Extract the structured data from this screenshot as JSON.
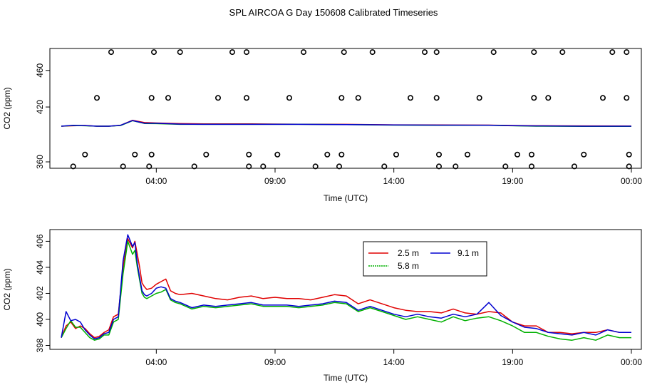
{
  "title": "SPL AIRCOA G  Day 150608  Calibrated Timeseries",
  "chart_data": [
    {
      "type": "scatter+line",
      "ylabel": "CO2 (ppm)",
      "xlabel": "Time (UTC)",
      "xlim": [
        0,
        24
      ],
      "ylim": [
        353,
        484
      ],
      "x_ticks": [
        {
          "value": 4,
          "label": "04:00"
        },
        {
          "value": 9,
          "label": "09:00"
        },
        {
          "value": 14,
          "label": "14:00"
        },
        {
          "value": 19,
          "label": "19:00"
        },
        {
          "value": 24,
          "label": "00:00"
        }
      ],
      "y_ticks": [
        {
          "value": 360,
          "label": "360"
        },
        {
          "value": 420,
          "label": "420"
        },
        {
          "value": 460,
          "label": "460"
        }
      ],
      "calibration_points": [
        {
          "x": 2.1,
          "y": 480
        },
        {
          "x": 3.9,
          "y": 480
        },
        {
          "x": 5.0,
          "y": 480
        },
        {
          "x": 7.2,
          "y": 480
        },
        {
          "x": 7.8,
          "y": 480
        },
        {
          "x": 10.2,
          "y": 480
        },
        {
          "x": 11.9,
          "y": 480
        },
        {
          "x": 13.1,
          "y": 480
        },
        {
          "x": 15.3,
          "y": 480
        },
        {
          "x": 15.8,
          "y": 480
        },
        {
          "x": 18.2,
          "y": 480
        },
        {
          "x": 19.9,
          "y": 480
        },
        {
          "x": 21.1,
          "y": 480
        },
        {
          "x": 23.2,
          "y": 480
        },
        {
          "x": 23.8,
          "y": 480
        },
        {
          "x": 1.5,
          "y": 430
        },
        {
          "x": 3.8,
          "y": 430
        },
        {
          "x": 4.5,
          "y": 430
        },
        {
          "x": 6.6,
          "y": 430
        },
        {
          "x": 7.8,
          "y": 430
        },
        {
          "x": 9.6,
          "y": 430
        },
        {
          "x": 11.8,
          "y": 430
        },
        {
          "x": 12.5,
          "y": 430
        },
        {
          "x": 14.7,
          "y": 430
        },
        {
          "x": 15.8,
          "y": 430
        },
        {
          "x": 17.6,
          "y": 430
        },
        {
          "x": 19.9,
          "y": 430
        },
        {
          "x": 20.5,
          "y": 430
        },
        {
          "x": 22.8,
          "y": 430
        },
        {
          "x": 23.8,
          "y": 430
        },
        {
          "x": 1.0,
          "y": 368
        },
        {
          "x": 3.1,
          "y": 368
        },
        {
          "x": 3.8,
          "y": 368
        },
        {
          "x": 6.1,
          "y": 368
        },
        {
          "x": 7.9,
          "y": 368
        },
        {
          "x": 9.1,
          "y": 368
        },
        {
          "x": 11.2,
          "y": 368
        },
        {
          "x": 11.8,
          "y": 368
        },
        {
          "x": 14.1,
          "y": 368
        },
        {
          "x": 15.9,
          "y": 368
        },
        {
          "x": 17.1,
          "y": 368
        },
        {
          "x": 19.2,
          "y": 368
        },
        {
          "x": 19.8,
          "y": 368
        },
        {
          "x": 22.0,
          "y": 368
        },
        {
          "x": 23.9,
          "y": 368
        },
        {
          "x": 0.5,
          "y": 355
        },
        {
          "x": 2.6,
          "y": 355
        },
        {
          "x": 3.7,
          "y": 355
        },
        {
          "x": 5.6,
          "y": 355
        },
        {
          "x": 7.9,
          "y": 355
        },
        {
          "x": 8.5,
          "y": 355
        },
        {
          "x": 10.7,
          "y": 355
        },
        {
          "x": 11.7,
          "y": 355
        },
        {
          "x": 13.6,
          "y": 355
        },
        {
          "x": 15.9,
          "y": 355
        },
        {
          "x": 16.6,
          "y": 355
        },
        {
          "x": 18.7,
          "y": 355
        },
        {
          "x": 19.8,
          "y": 355
        },
        {
          "x": 21.6,
          "y": 355
        },
        {
          "x": 23.9,
          "y": 355
        }
      ],
      "series": [
        {
          "name": "2.5 m",
          "color": "#e00000",
          "x": [
            0,
            0.5,
            1,
            1.5,
            2,
            2.5,
            3.0,
            3.5,
            4,
            5,
            6,
            8,
            10,
            12,
            14,
            16,
            18,
            19,
            20,
            22,
            24
          ],
          "y": [
            399.0,
            399.5,
            399.8,
            399.0,
            399.0,
            400.0,
            405.5,
            403.0,
            402.5,
            401.8,
            401.5,
            401.5,
            401.2,
            401.0,
            400.5,
            400.3,
            400.2,
            399.8,
            399.5,
            399.3,
            399.2
          ]
        },
        {
          "name": "5.8 m",
          "color": "#00b000",
          "x": [
            0,
            0.5,
            1,
            1.5,
            2,
            2.5,
            3.0,
            3.5,
            4,
            5,
            6,
            8,
            10,
            12,
            14,
            16,
            18,
            19,
            20,
            22,
            24
          ],
          "y": [
            399.0,
            399.8,
            399.5,
            399.0,
            399.0,
            399.8,
            405.0,
            402.0,
            401.8,
            401.0,
            401.0,
            401.0,
            401.0,
            400.8,
            400.2,
            400.0,
            400.0,
            399.5,
            399.0,
            398.8,
            398.8
          ]
        },
        {
          "name": "9.1 m",
          "color": "#0000d0",
          "x": [
            0,
            0.5,
            1,
            1.5,
            2,
            2.5,
            3.0,
            3.5,
            4,
            5,
            6,
            8,
            10,
            12,
            14,
            16,
            18,
            19,
            20,
            22,
            24
          ],
          "y": [
            399.0,
            400.0,
            399.7,
            399.0,
            399.0,
            400.0,
            405.2,
            402.2,
            402.2,
            401.3,
            401.0,
            401.0,
            401.0,
            400.8,
            400.3,
            400.2,
            400.1,
            399.6,
            399.3,
            399.0,
            399.0
          ]
        }
      ]
    },
    {
      "type": "line",
      "ylabel": "CO2 (ppm)",
      "xlabel": "Time (UTC)",
      "xlim": [
        0,
        24
      ],
      "ylim": [
        397.7,
        406.9
      ],
      "x_ticks": [
        {
          "value": 4,
          "label": "04:00"
        },
        {
          "value": 9,
          "label": "09:00"
        },
        {
          "value": 14,
          "label": "14:00"
        },
        {
          "value": 19,
          "label": "19:00"
        },
        {
          "value": 24,
          "label": "00:00"
        }
      ],
      "y_ticks": [
        {
          "value": 398,
          "label": "398"
        },
        {
          "value": 400,
          "label": "400"
        },
        {
          "value": 402,
          "label": "402"
        },
        {
          "value": 404,
          "label": "404"
        },
        {
          "value": 406,
          "label": "406"
        }
      ],
      "legend_position": "top-center",
      "series": [
        {
          "name": "2.5 m",
          "color": "#e00000",
          "x": [
            0,
            0.2,
            0.4,
            0.6,
            0.8,
            1.0,
            1.2,
            1.4,
            1.6,
            1.8,
            2.0,
            2.2,
            2.4,
            2.6,
            2.8,
            3.0,
            3.1,
            3.2,
            3.3,
            3.4,
            3.5,
            3.6,
            3.8,
            4.0,
            4.2,
            4.4,
            4.6,
            4.8,
            5.0,
            5.5,
            6.0,
            6.5,
            7.0,
            7.5,
            8.0,
            8.5,
            9.0,
            9.5,
            10.0,
            10.5,
            11.0,
            11.5,
            12.0,
            12.5,
            13.0,
            13.5,
            14.0,
            14.5,
            15.0,
            15.5,
            16.0,
            16.5,
            17.0,
            17.5,
            18.0,
            18.5,
            19.0,
            19.5,
            20.0,
            20.5,
            21.0,
            21.5,
            22.0,
            22.5,
            23.0,
            23.5,
            24.0
          ],
          "y": [
            398.6,
            399.5,
            399.8,
            399.3,
            399.5,
            399.3,
            398.9,
            398.6,
            398.7,
            399.0,
            399.2,
            400.2,
            400.4,
            404.0,
            406.2,
            405.5,
            406.0,
            405.0,
            404.0,
            402.8,
            402.5,
            402.3,
            402.4,
            402.7,
            402.9,
            403.1,
            402.2,
            402.0,
            401.9,
            402.0,
            401.8,
            401.6,
            401.5,
            401.7,
            401.8,
            401.6,
            401.7,
            401.6,
            401.6,
            401.5,
            401.7,
            401.9,
            401.8,
            401.2,
            401.5,
            401.2,
            400.9,
            400.7,
            400.6,
            400.6,
            400.5,
            400.8,
            400.5,
            400.4,
            400.6,
            400.5,
            399.8,
            399.5,
            399.5,
            399.0,
            399.0,
            398.9,
            399.0,
            399.0,
            399.2,
            399.0,
            399.0
          ]
        },
        {
          "name": "5.8 m",
          "color": "#00b000",
          "x": [
            0,
            0.2,
            0.4,
            0.6,
            0.8,
            1.0,
            1.2,
            1.4,
            1.6,
            1.8,
            2.0,
            2.2,
            2.4,
            2.6,
            2.8,
            3.0,
            3.1,
            3.2,
            3.3,
            3.4,
            3.5,
            3.6,
            3.8,
            4.0,
            4.2,
            4.4,
            4.6,
            4.8,
            5.0,
            5.5,
            6.0,
            6.5,
            7.0,
            7.5,
            8.0,
            8.5,
            9.0,
            9.5,
            10.0,
            10.5,
            11.0,
            11.5,
            12.0,
            12.5,
            13.0,
            13.5,
            14.0,
            14.5,
            15.0,
            15.5,
            16.0,
            16.5,
            17.0,
            17.5,
            18.0,
            18.5,
            19.0,
            19.5,
            20.0,
            20.5,
            21.0,
            21.5,
            22.0,
            22.5,
            23.0,
            23.5,
            24.0
          ],
          "y": [
            398.6,
            399.3,
            399.9,
            399.4,
            399.4,
            399.0,
            398.6,
            398.4,
            398.5,
            398.8,
            398.8,
            399.8,
            400.0,
            403.5,
            406.0,
            405.0,
            405.3,
            404.0,
            403.0,
            402.0,
            401.7,
            401.6,
            401.8,
            402.0,
            402.1,
            402.3,
            401.5,
            401.3,
            401.2,
            400.8,
            401.0,
            400.9,
            401.0,
            401.1,
            401.2,
            401.0,
            401.0,
            401.0,
            400.9,
            401.0,
            401.1,
            401.3,
            401.2,
            400.6,
            400.9,
            400.6,
            400.3,
            400.0,
            400.2,
            400.0,
            399.8,
            400.2,
            399.9,
            400.1,
            400.2,
            399.9,
            399.5,
            399.0,
            399.0,
            398.7,
            398.5,
            398.4,
            398.6,
            398.4,
            398.8,
            398.6,
            398.6
          ]
        },
        {
          "name": "9.1 m",
          "color": "#0000d0",
          "x": [
            0,
            0.2,
            0.4,
            0.6,
            0.8,
            1.0,
            1.2,
            1.4,
            1.6,
            1.8,
            2.0,
            2.2,
            2.4,
            2.6,
            2.8,
            3.0,
            3.1,
            3.2,
            3.3,
            3.4,
            3.5,
            3.6,
            3.8,
            4.0,
            4.2,
            4.4,
            4.6,
            4.8,
            5.0,
            5.5,
            6.0,
            6.5,
            7.0,
            7.5,
            8.0,
            8.5,
            9.0,
            9.5,
            10.0,
            10.5,
            11.0,
            11.5,
            12.0,
            12.5,
            13.0,
            13.5,
            14.0,
            14.5,
            15.0,
            15.5,
            16.0,
            16.5,
            17.0,
            17.5,
            18.0,
            18.5,
            19.0,
            19.5,
            20.0,
            20.5,
            21.0,
            21.5,
            22.0,
            22.5,
            23.0,
            23.5,
            24.0
          ],
          "y": [
            398.6,
            400.6,
            399.9,
            400.0,
            399.8,
            399.2,
            398.8,
            398.5,
            398.6,
            398.9,
            399.0,
            400.0,
            400.2,
            404.5,
            406.5,
            405.6,
            405.9,
            404.3,
            403.2,
            402.2,
            401.9,
            401.8,
            402.0,
            402.4,
            402.5,
            402.4,
            401.6,
            401.4,
            401.3,
            400.9,
            401.1,
            401.0,
            401.1,
            401.2,
            401.3,
            401.1,
            401.1,
            401.1,
            401.0,
            401.1,
            401.2,
            401.4,
            401.3,
            400.7,
            401.0,
            400.7,
            400.4,
            400.2,
            400.4,
            400.2,
            400.1,
            400.4,
            400.2,
            400.4,
            401.3,
            400.3,
            399.8,
            399.4,
            399.3,
            399.0,
            398.9,
            398.8,
            399.0,
            398.8,
            399.2,
            399.0,
            399.0
          ]
        }
      ]
    }
  ]
}
